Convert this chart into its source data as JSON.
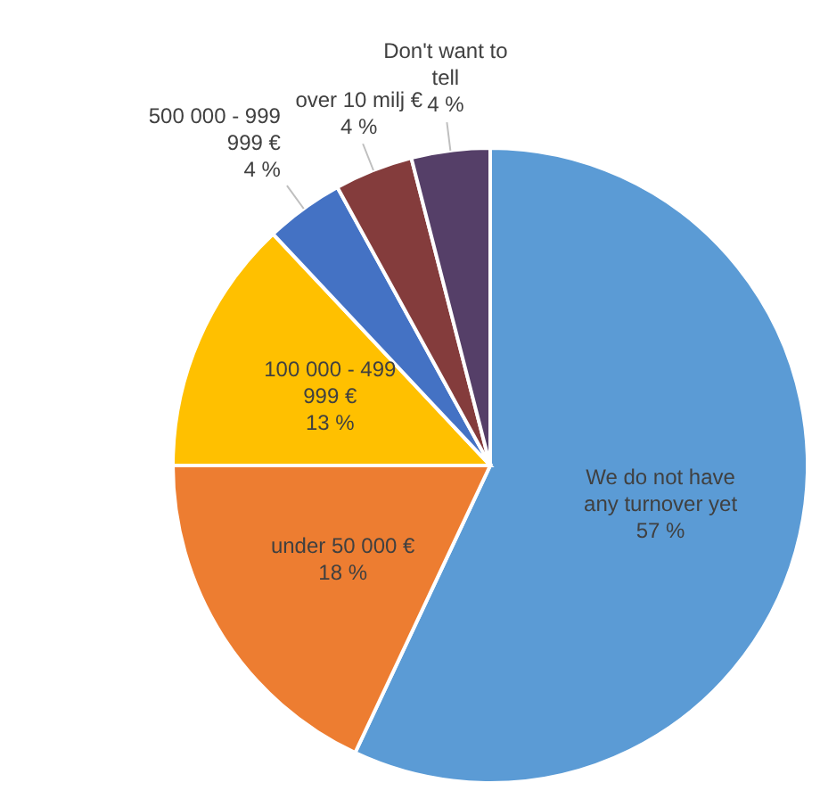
{
  "chart_data": {
    "type": "pie",
    "categories": [
      "We do not have any turnover yet",
      "under 50 000 €",
      "100 000 - 499 999 €",
      "500 000 - 999 999 €",
      "over 10 milj €",
      "Don't want to tell"
    ],
    "values": [
      57,
      18,
      13,
      4,
      4,
      4
    ],
    "colors": [
      "#5b9bd5",
      "#ed7d31",
      "#ffc000",
      "#4472c4",
      "#843c3c",
      "#553f68"
    ],
    "value_labels": [
      "57 %",
      "18 %",
      "13 %",
      "4 %",
      "4 %",
      "4 %"
    ]
  }
}
